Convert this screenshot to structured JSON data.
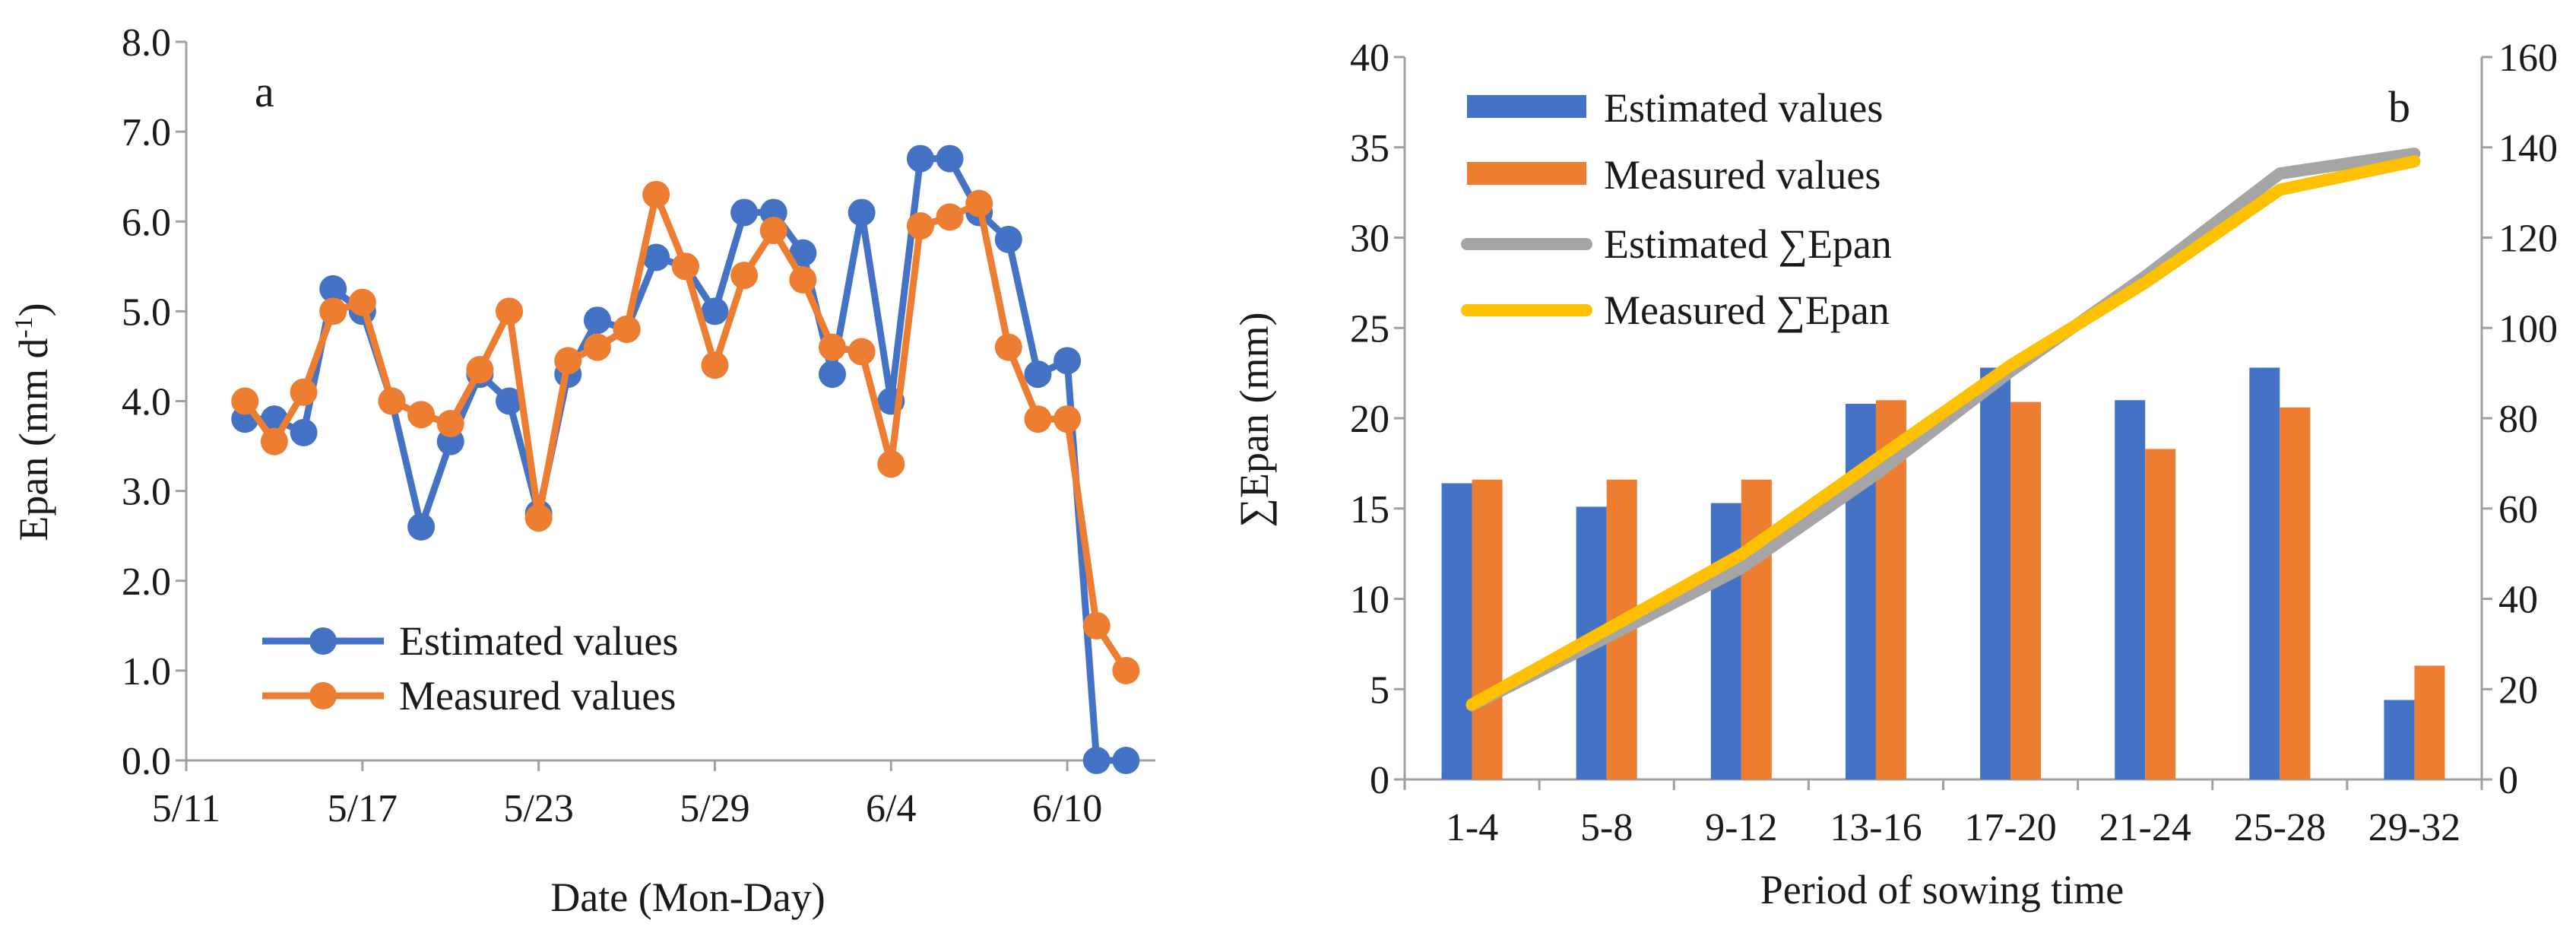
{
  "chart_data": [
    {
      "type": "line",
      "panel_label": "a",
      "xlabel": "Date (Mon-Day)",
      "ylabel": "Epan (mm d-1)",
      "ylabel_parts": [
        "Epan (mm d",
        "-1",
        ")"
      ],
      "ylim": [
        0,
        8
      ],
      "yticks": [
        "0.0",
        "1.0",
        "2.0",
        "3.0",
        "4.0",
        "5.0",
        "6.0",
        "7.0",
        "8.0"
      ],
      "xticks": [
        "5/11",
        "5/17",
        "5/23",
        "5/29",
        "6/4",
        "6/10"
      ],
      "x_start": "5/11",
      "x_range_days": [
        0,
        33
      ],
      "grid": false,
      "legend_position": "bottom-left",
      "series": [
        {
          "name": "Estimated values",
          "color": "#4472C4",
          "x_days": [
            2,
            3,
            4,
            5,
            6,
            7,
            8,
            9,
            10,
            11,
            12,
            13,
            14,
            15,
            16,
            17,
            18,
            19,
            20,
            21,
            22,
            23,
            24,
            25,
            26,
            27,
            28,
            29,
            30,
            31,
            32
          ],
          "values": [
            3.8,
            3.8,
            3.65,
            5.25,
            5.0,
            4.0,
            2.6,
            3.55,
            4.3,
            4.0,
            2.75,
            4.3,
            4.9,
            4.8,
            5.6,
            5.5,
            5.0,
            6.1,
            6.1,
            5.65,
            4.3,
            6.1,
            4.0,
            6.7,
            6.7,
            6.1,
            5.8,
            4.3,
            4.45,
            0.0,
            0.0
          ]
        },
        {
          "name": "Measured values",
          "color": "#ED7D31",
          "x_days": [
            2,
            3,
            4,
            5,
            6,
            7,
            8,
            9,
            10,
            11,
            12,
            13,
            14,
            15,
            16,
            17,
            18,
            19,
            20,
            21,
            22,
            23,
            24,
            25,
            26,
            27,
            28,
            29,
            30,
            31,
            32
          ],
          "values": [
            4.0,
            3.55,
            4.1,
            5.0,
            5.1,
            4.0,
            3.85,
            3.75,
            4.35,
            5.0,
            2.7,
            4.45,
            4.6,
            4.8,
            6.3,
            5.5,
            4.4,
            5.4,
            5.9,
            5.35,
            4.6,
            4.55,
            3.3,
            5.95,
            6.05,
            6.2,
            4.6,
            3.8,
            3.8,
            1.5,
            1.0
          ]
        }
      ]
    },
    {
      "type": "bar",
      "panel_label": "b",
      "xlabel": "Period of sowing time",
      "ylabel": "∑Epan (mm)",
      "categories": [
        "1-4",
        "5-8",
        "9-12",
        "13-16",
        "17-20",
        "21-24",
        "25-28",
        "29-32"
      ],
      "ylim": [
        0,
        40
      ],
      "yticks": [
        "0",
        "5",
        "10",
        "15",
        "20",
        "25",
        "30",
        "35",
        "40"
      ],
      "y2lim": [
        0,
        160
      ],
      "y2ticks": [
        "0",
        "20",
        "40",
        "60",
        "80",
        "100",
        "120",
        "140",
        "160"
      ],
      "grid": false,
      "legend_position": "top-left",
      "series": [
        {
          "name": "Estimated values",
          "kind": "bar",
          "axis": "left",
          "color": "#4472C4",
          "values": [
            16.4,
            15.1,
            15.3,
            20.8,
            22.8,
            21.0,
            22.8,
            4.4
          ]
        },
        {
          "name": "Measured values",
          "kind": "bar",
          "axis": "left",
          "color": "#ED7D31",
          "values": [
            16.6,
            16.6,
            16.6,
            21.0,
            20.9,
            18.3,
            20.6,
            6.3
          ]
        },
        {
          "name": "Estimated ∑Epan",
          "kind": "line",
          "axis": "right",
          "color": "#A5A5A5",
          "values": [
            16.4,
            31.5,
            46.8,
            67.6,
            90.4,
            111.4,
            134.2,
            138.6
          ]
        },
        {
          "name": "Measured ∑Epan",
          "kind": "line",
          "axis": "right",
          "color": "#FFC000",
          "values": [
            16.6,
            33.2,
            49.8,
            70.8,
            91.7,
            110.0,
            130.6,
            136.9
          ]
        }
      ]
    }
  ]
}
